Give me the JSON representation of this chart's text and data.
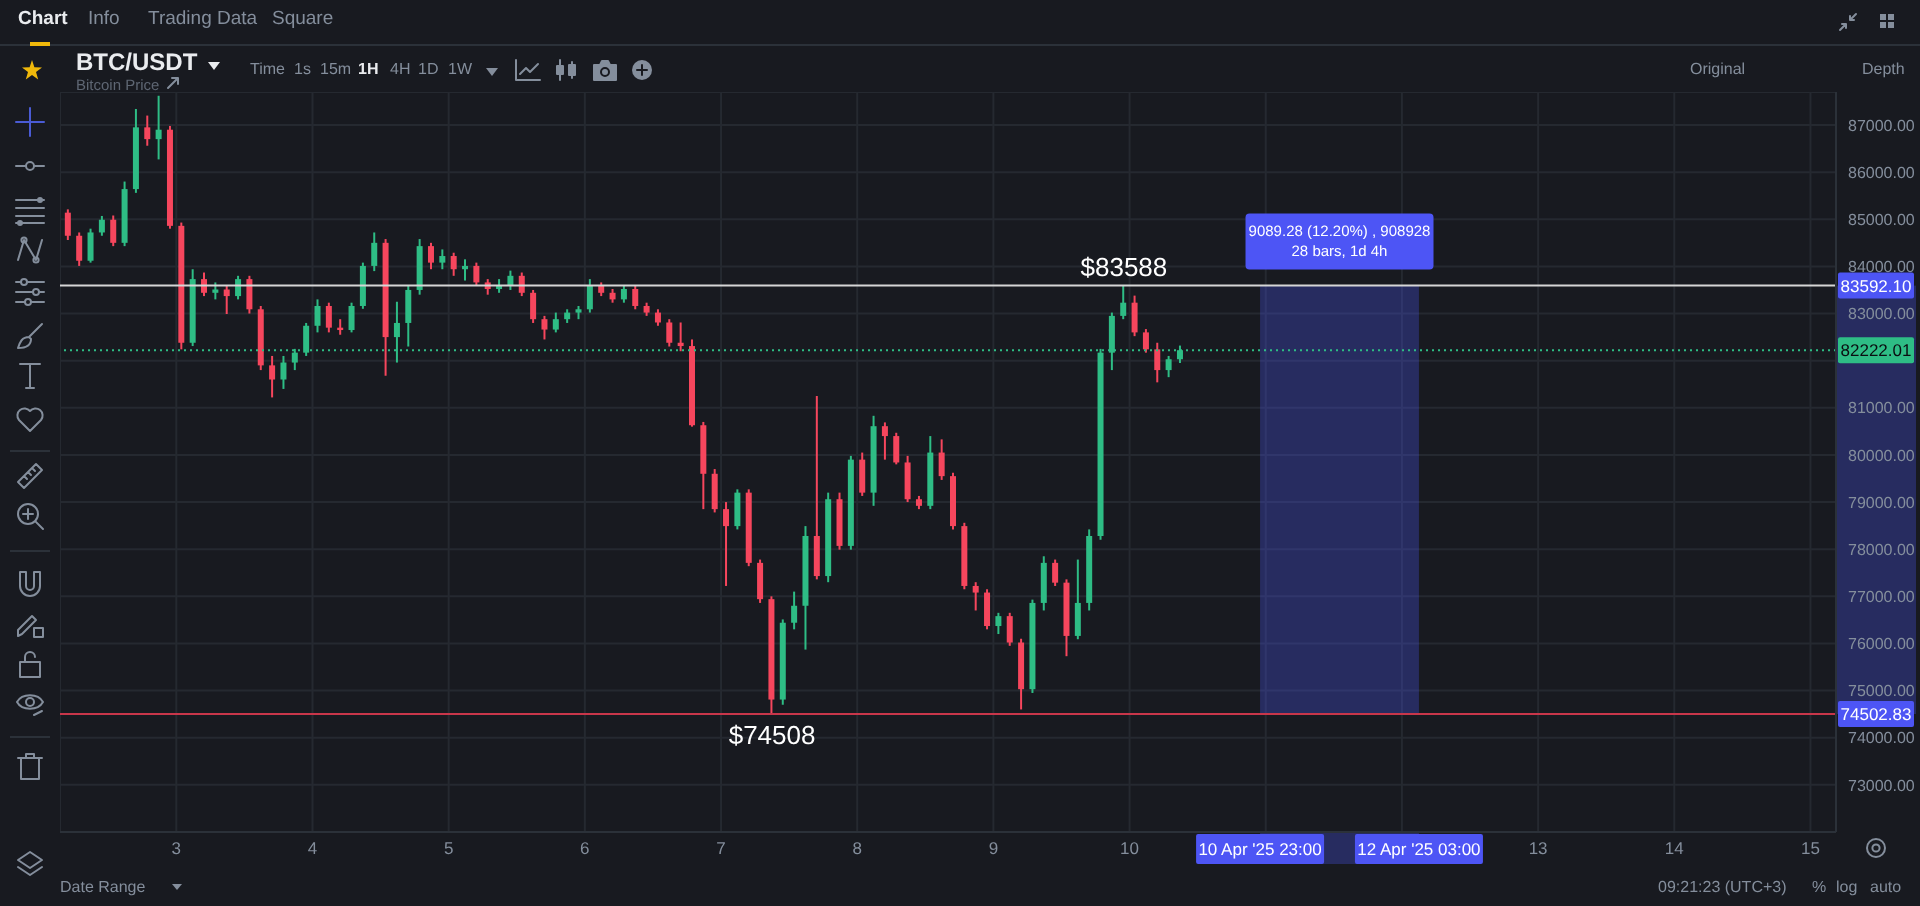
{
  "chart_data": {
    "type": "candlestick",
    "title": "BTC/USDT",
    "subtitle": "Bitcoin Price",
    "x": [
      "2025-04-02T05:00",
      "2025-04-02T07:00",
      "2025-04-02T09:00",
      "2025-04-02T11:00",
      "2025-04-02T13:00",
      "2025-04-02T15:00",
      "2025-04-02T17:00",
      "2025-04-02T19:00",
      "2025-04-02T21:00",
      "2025-04-02T23:00",
      "2025-04-03T01:00",
      "2025-04-03T03:00",
      "2025-04-03T05:00",
      "2025-04-03T07:00",
      "2025-04-03T09:00",
      "2025-04-03T11:00",
      "2025-04-03T13:00",
      "2025-04-03T15:00",
      "2025-04-03T17:00",
      "2025-04-03T19:00",
      "2025-04-03T21:00",
      "2025-04-03T23:00",
      "2025-04-04T01:00",
      "2025-04-04T03:00",
      "2025-04-04T05:00",
      "2025-04-04T07:00",
      "2025-04-04T09:00",
      "2025-04-04T11:00",
      "2025-04-04T13:00",
      "2025-04-04T15:00",
      "2025-04-04T17:00",
      "2025-04-04T19:00",
      "2025-04-04T21:00",
      "2025-04-04T23:00",
      "2025-04-05T01:00",
      "2025-04-05T03:00",
      "2025-04-05T05:00",
      "2025-04-05T07:00",
      "2025-04-05T09:00",
      "2025-04-05T11:00",
      "2025-04-05T13:00",
      "2025-04-05T15:00",
      "2025-04-05T17:00",
      "2025-04-05T19:00",
      "2025-04-05T21:00",
      "2025-04-05T23:00",
      "2025-04-06T01:00",
      "2025-04-06T03:00",
      "2025-04-06T05:00",
      "2025-04-06T07:00",
      "2025-04-06T09:00",
      "2025-04-06T11:00",
      "2025-04-06T13:00",
      "2025-04-06T15:00",
      "2025-04-06T17:00",
      "2025-04-06T19:00",
      "2025-04-06T21:00",
      "2025-04-06T23:00",
      "2025-04-07T01:00",
      "2025-04-07T03:00",
      "2025-04-07T05:00",
      "2025-04-07T07:00",
      "2025-04-07T09:00",
      "2025-04-07T11:00",
      "2025-04-07T13:00",
      "2025-04-07T15:00",
      "2025-04-07T17:00",
      "2025-04-07T19:00",
      "2025-04-07T21:00",
      "2025-04-07T23:00",
      "2025-04-08T01:00",
      "2025-04-08T03:00",
      "2025-04-08T05:00",
      "2025-04-08T07:00",
      "2025-04-08T09:00",
      "2025-04-08T11:00",
      "2025-04-08T13:00",
      "2025-04-08T15:00",
      "2025-04-08T17:00",
      "2025-04-08T19:00",
      "2025-04-08T21:00",
      "2025-04-08T23:00",
      "2025-04-09T01:00",
      "2025-04-09T03:00",
      "2025-04-09T05:00",
      "2025-04-09T07:00",
      "2025-04-09T09:00",
      "2025-04-09T11:00",
      "2025-04-09T13:00",
      "2025-04-09T15:00",
      "2025-04-09T17:00",
      "2025-04-09T19:00",
      "2025-04-09T21:00",
      "2025-04-09T23:00",
      "2025-04-10T01:00",
      "2025-04-10T03:00",
      "2025-04-10T05:00",
      "2025-04-10T07:00",
      "2025-04-10T09:00"
    ],
    "ohlc": [
      [
        85140,
        85210,
        84560,
        84650
      ],
      [
        84650,
        84720,
        84010,
        84120
      ],
      [
        84120,
        84800,
        84080,
        84720
      ],
      [
        84720,
        85070,
        84650,
        84990
      ],
      [
        84990,
        85080,
        84430,
        84500
      ],
      [
        84500,
        85800,
        84430,
        85640
      ],
      [
        85640,
        87340,
        85560,
        86950
      ],
      [
        86950,
        87200,
        86560,
        86700
      ],
      [
        86700,
        87620,
        86270,
        86900
      ],
      [
        86900,
        86980,
        84800,
        84860
      ],
      [
        84860,
        84930,
        82240,
        82380
      ],
      [
        82380,
        83940,
        82310,
        83730
      ],
      [
        83730,
        83870,
        83370,
        83440
      ],
      [
        83440,
        83660,
        83300,
        83510
      ],
      [
        83510,
        83590,
        82990,
        83370
      ],
      [
        83370,
        83800,
        83300,
        83730
      ],
      [
        83730,
        83800,
        83000,
        83090
      ],
      [
        83090,
        83160,
        81800,
        81900
      ],
      [
        81900,
        82100,
        81220,
        81600
      ],
      [
        81600,
        82100,
        81400,
        81960
      ],
      [
        81960,
        82250,
        81800,
        82170
      ],
      [
        82170,
        82800,
        82100,
        82740
      ],
      [
        82740,
        83300,
        82600,
        83160
      ],
      [
        83160,
        83230,
        82600,
        82700
      ],
      [
        82700,
        82880,
        82550,
        82650
      ],
      [
        82650,
        83230,
        82600,
        83160
      ],
      [
        83160,
        84080,
        83100,
        84010
      ],
      [
        84010,
        84720,
        83900,
        84500
      ],
      [
        84500,
        84580,
        81680,
        82500
      ],
      [
        82500,
        83250,
        81960,
        82800
      ],
      [
        82800,
        83600,
        82300,
        83500
      ],
      [
        83500,
        84580,
        83400,
        84430
      ],
      [
        84430,
        84500,
        83940,
        84080
      ],
      [
        84080,
        84360,
        83940,
        84220
      ],
      [
        84220,
        84290,
        83800,
        83940
      ],
      [
        83940,
        84150,
        83700,
        84010
      ],
      [
        84010,
        84080,
        83600,
        83660
      ],
      [
        83660,
        83730,
        83400,
        83520
      ],
      [
        83520,
        83730,
        83440,
        83590
      ],
      [
        83590,
        83910,
        83500,
        83800
      ],
      [
        83800,
        83870,
        83370,
        83440
      ],
      [
        83440,
        83500,
        82800,
        82880
      ],
      [
        82880,
        82950,
        82450,
        82660
      ],
      [
        82660,
        83020,
        82600,
        82880
      ],
      [
        82880,
        83090,
        82800,
        83020
      ],
      [
        83020,
        83160,
        82880,
        83090
      ],
      [
        83090,
        83730,
        83020,
        83590
      ],
      [
        83590,
        83660,
        83370,
        83440
      ],
      [
        83440,
        83520,
        83230,
        83300
      ],
      [
        83300,
        83590,
        83230,
        83520
      ],
      [
        83520,
        83590,
        83090,
        83160
      ],
      [
        83160,
        83230,
        82950,
        83020
      ],
      [
        83020,
        83090,
        82740,
        82810
      ],
      [
        82810,
        82880,
        82300,
        82380
      ],
      [
        82380,
        82810,
        82200,
        82310
      ],
      [
        82310,
        82450,
        80600,
        80630
      ],
      [
        80630,
        80700,
        78850,
        79600
      ],
      [
        79600,
        79700,
        78780,
        78850
      ],
      [
        78850,
        79000,
        77220,
        78490
      ],
      [
        78490,
        79270,
        78420,
        79200
      ],
      [
        79200,
        79270,
        77640,
        77710
      ],
      [
        77710,
        77780,
        76860,
        76940
      ],
      [
        76940,
        77000,
        74508,
        74810
      ],
      [
        74810,
        76510,
        74700,
        76440
      ],
      [
        76440,
        77100,
        76300,
        76800
      ],
      [
        76800,
        78490,
        75870,
        78280
      ],
      [
        78280,
        81250,
        77360,
        77430
      ],
      [
        77430,
        79200,
        77300,
        79060
      ],
      [
        79060,
        79200,
        77990,
        78070
      ],
      [
        78070,
        79980,
        77990,
        79900
      ],
      [
        79900,
        80050,
        79130,
        79200
      ],
      [
        79200,
        80830,
        78920,
        80610
      ],
      [
        80610,
        80690,
        79900,
        80400
      ],
      [
        80400,
        80470,
        79800,
        79840
      ],
      [
        79840,
        79980,
        79000,
        79060
      ],
      [
        79060,
        79130,
        78850,
        78920
      ],
      [
        78920,
        80400,
        78850,
        80050
      ],
      [
        80050,
        80330,
        79470,
        79550
      ],
      [
        79550,
        79620,
        78420,
        78490
      ],
      [
        78490,
        78560,
        77150,
        77220
      ],
      [
        77220,
        77300,
        76700,
        77080
      ],
      [
        77080,
        77150,
        76300,
        76370
      ],
      [
        76370,
        76650,
        76200,
        76580
      ],
      [
        76580,
        76650,
        75950,
        76020
      ],
      [
        76020,
        76100,
        74600,
        75030
      ],
      [
        75030,
        76930,
        74950,
        76860
      ],
      [
        76860,
        77850,
        76700,
        77710
      ],
      [
        77710,
        77780,
        77220,
        77290
      ],
      [
        77290,
        77360,
        75730,
        76160
      ],
      [
        76160,
        77780,
        76090,
        76860
      ],
      [
        76860,
        78420,
        76700,
        78280
      ],
      [
        78280,
        82250,
        78200,
        82170
      ],
      [
        82170,
        83020,
        81800,
        82950
      ],
      [
        82950,
        83588,
        82880,
        83230
      ],
      [
        83230,
        83380,
        82520,
        82600
      ],
      [
        82600,
        82670,
        82170,
        82240
      ],
      [
        82240,
        82380,
        81540,
        81800
      ],
      [
        81800,
        82100,
        81650,
        82030
      ],
      [
        82030,
        82320,
        81950,
        82222
      ]
    ],
    "colors": [
      "#f6465d",
      "#f6465d",
      "#2ebd85",
      "#2ebd85",
      "#f6465d",
      "#2ebd85",
      "#2ebd85",
      "#f6465d",
      "#2ebd85",
      "#f6465d",
      "#f6465d",
      "#2ebd85",
      "#f6465d",
      "#2ebd85",
      "#f6465d",
      "#2ebd85",
      "#f6465d",
      "#f6465d",
      "#f6465d",
      "#2ebd85",
      "#2ebd85",
      "#2ebd85",
      "#2ebd85",
      "#f6465d",
      "#f6465d",
      "#2ebd85",
      "#2ebd85",
      "#2ebd85",
      "#f6465d",
      "#2ebd85",
      "#2ebd85",
      "#2ebd85",
      "#f6465d",
      "#2ebd85",
      "#f6465d",
      "#2ebd85",
      "#f6465d",
      "#f6465d",
      "#2ebd85",
      "#2ebd85",
      "#f6465d",
      "#f6465d",
      "#f6465d",
      "#2ebd85",
      "#2ebd85",
      "#2ebd85",
      "#2ebd85",
      "#f6465d",
      "#f6465d",
      "#2ebd85",
      "#f6465d",
      "#f6465d",
      "#f6465d",
      "#f6465d",
      "#f6465d",
      "#f6465d",
      "#f6465d",
      "#f6465d",
      "#f6465d",
      "#2ebd85",
      "#f6465d",
      "#f6465d",
      "#f6465d",
      "#2ebd85",
      "#2ebd85",
      "#2ebd85",
      "#f6465d",
      "#2ebd85",
      "#f6465d",
      "#2ebd85",
      "#f6465d",
      "#2ebd85",
      "#f6465d",
      "#f6465d",
      "#f6465d",
      "#f6465d",
      "#2ebd85",
      "#f6465d",
      "#f6465d",
      "#f6465d",
      "#f6465d",
      "#f6465d",
      "#2ebd85",
      "#f6465d",
      "#f6465d",
      "#2ebd85",
      "#2ebd85",
      "#f6465d",
      "#f6465d",
      "#2ebd85",
      "#2ebd85",
      "#2ebd85",
      "#2ebd85",
      "#2ebd85",
      "#f6465d",
      "#f6465d",
      "#f6465d",
      "#2ebd85",
      "#2ebd85"
    ],
    "xlim": [
      "2025-04-02T03:30",
      "2025-04-15T04:30"
    ],
    "xticks": [
      {
        "value": "2025-04-03",
        "label": "3"
      },
      {
        "value": "2025-04-04",
        "label": "4"
      },
      {
        "value": "2025-04-05",
        "label": "5"
      },
      {
        "value": "2025-04-06",
        "label": "6"
      },
      {
        "value": "2025-04-07",
        "label": "7"
      },
      {
        "value": "2025-04-08",
        "label": "8"
      },
      {
        "value": "2025-04-09",
        "label": "9"
      },
      {
        "value": "2025-04-10",
        "label": "10"
      },
      {
        "value": "2025-04-11",
        "label": null
      },
      {
        "value": "2025-04-12",
        "label": null
      },
      {
        "value": "2025-04-13",
        "label": "13"
      },
      {
        "value": "2025-04-14",
        "label": "14"
      },
      {
        "value": "2025-04-15",
        "label": "15"
      }
    ],
    "ylim": [
      72000,
      87700
    ],
    "yticks": [
      {
        "value": 73000,
        "label": "73000.00"
      },
      {
        "value": 74000,
        "label": "74000.00"
      },
      {
        "value": 75000,
        "label": "75000.00"
      },
      {
        "value": 76000,
        "label": "76000.00"
      },
      {
        "value": 77000,
        "label": "77000.00"
      },
      {
        "value": 78000,
        "label": "78000.00"
      },
      {
        "value": 79000,
        "label": "79000.00"
      },
      {
        "value": 80000,
        "label": "80000.00"
      },
      {
        "value": 81000,
        "label": "81000.00"
      },
      {
        "value": 82000,
        "label": null
      },
      {
        "value": 83000,
        "label": "83000.00"
      },
      {
        "value": 84000,
        "label": "84000.00"
      },
      {
        "value": 85000,
        "label": "85000.00"
      },
      {
        "value": 86000,
        "label": "86000.00"
      },
      {
        "value": 87000,
        "label": "87000.00"
      }
    ],
    "grid": true,
    "ref_lines": [
      {
        "axis": "y",
        "value": 83592.1,
        "label": "83592.10",
        "color": "#d6d6d6"
      },
      {
        "axis": "y",
        "value": 82222.01,
        "label": "82222.01",
        "color": "#2ebd85",
        "line_style": "dotted"
      },
      {
        "axis": "y",
        "value": 74502.83,
        "label": "74502.83",
        "color": "#c8364a"
      }
    ],
    "bands": [
      {
        "axis": "x",
        "from": "2025-04-10T23:00",
        "to": "2025-04-12T03:00",
        "label": "9089.28 (12.20%) , 908928\n28 bars, 1d 4h",
        "color": "#4d55f5"
      }
    ],
    "annotations": [
      {
        "text": "$83588",
        "x": "2025-04-09T23:00",
        "y": 83588
      },
      {
        "text": "$74508",
        "x": "2025-04-07T09:00",
        "y": 74508
      },
      "10 Apr '25 23:00",
      "12 Apr '25 03:00",
      "Chart",
      "Info",
      "Trading Data",
      "Square",
      "Time",
      "1s",
      "15m",
      "1H",
      "4H",
      "1D",
      "1W",
      "Original",
      "Depth",
      "Date Range",
      "09:21:23 (UTC+3)",
      "%",
      "log",
      "auto"
    ]
  }
}
